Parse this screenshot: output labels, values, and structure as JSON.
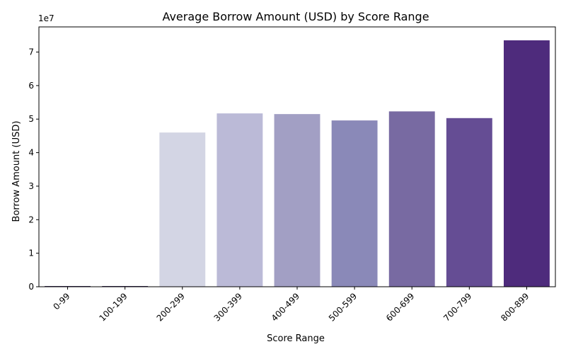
{
  "chart_data": {
    "type": "bar",
    "title": "Average Borrow Amount (USD) by Score Range",
    "xlabel": "Score Range",
    "ylabel": "Borrow Amount (USD)",
    "y_offset_label": "1e7",
    "categories": [
      "0-99",
      "100-199",
      "200-299",
      "300-399",
      "400-499",
      "500-599",
      "600-699",
      "700-799",
      "800-899"
    ],
    "values": [
      0,
      0,
      46000000,
      51700000,
      51500000,
      49600000,
      52300000,
      50300000,
      73500000
    ],
    "colors": [
      "#f5f4fa",
      "#ebe9f3",
      "#d3d5e4",
      "#bbbad7",
      "#a29fc4",
      "#8a89b8",
      "#786aa2",
      "#654d94",
      "#4e2b7c"
    ],
    "ylim": [
      0,
      77500000
    ],
    "yticks": [
      0,
      10000000,
      20000000,
      30000000,
      40000000,
      50000000,
      60000000,
      70000000
    ],
    "ytick_labels": [
      "0",
      "1",
      "2",
      "3",
      "4",
      "5",
      "6",
      "7"
    ],
    "grid": false,
    "legend": "none"
  }
}
